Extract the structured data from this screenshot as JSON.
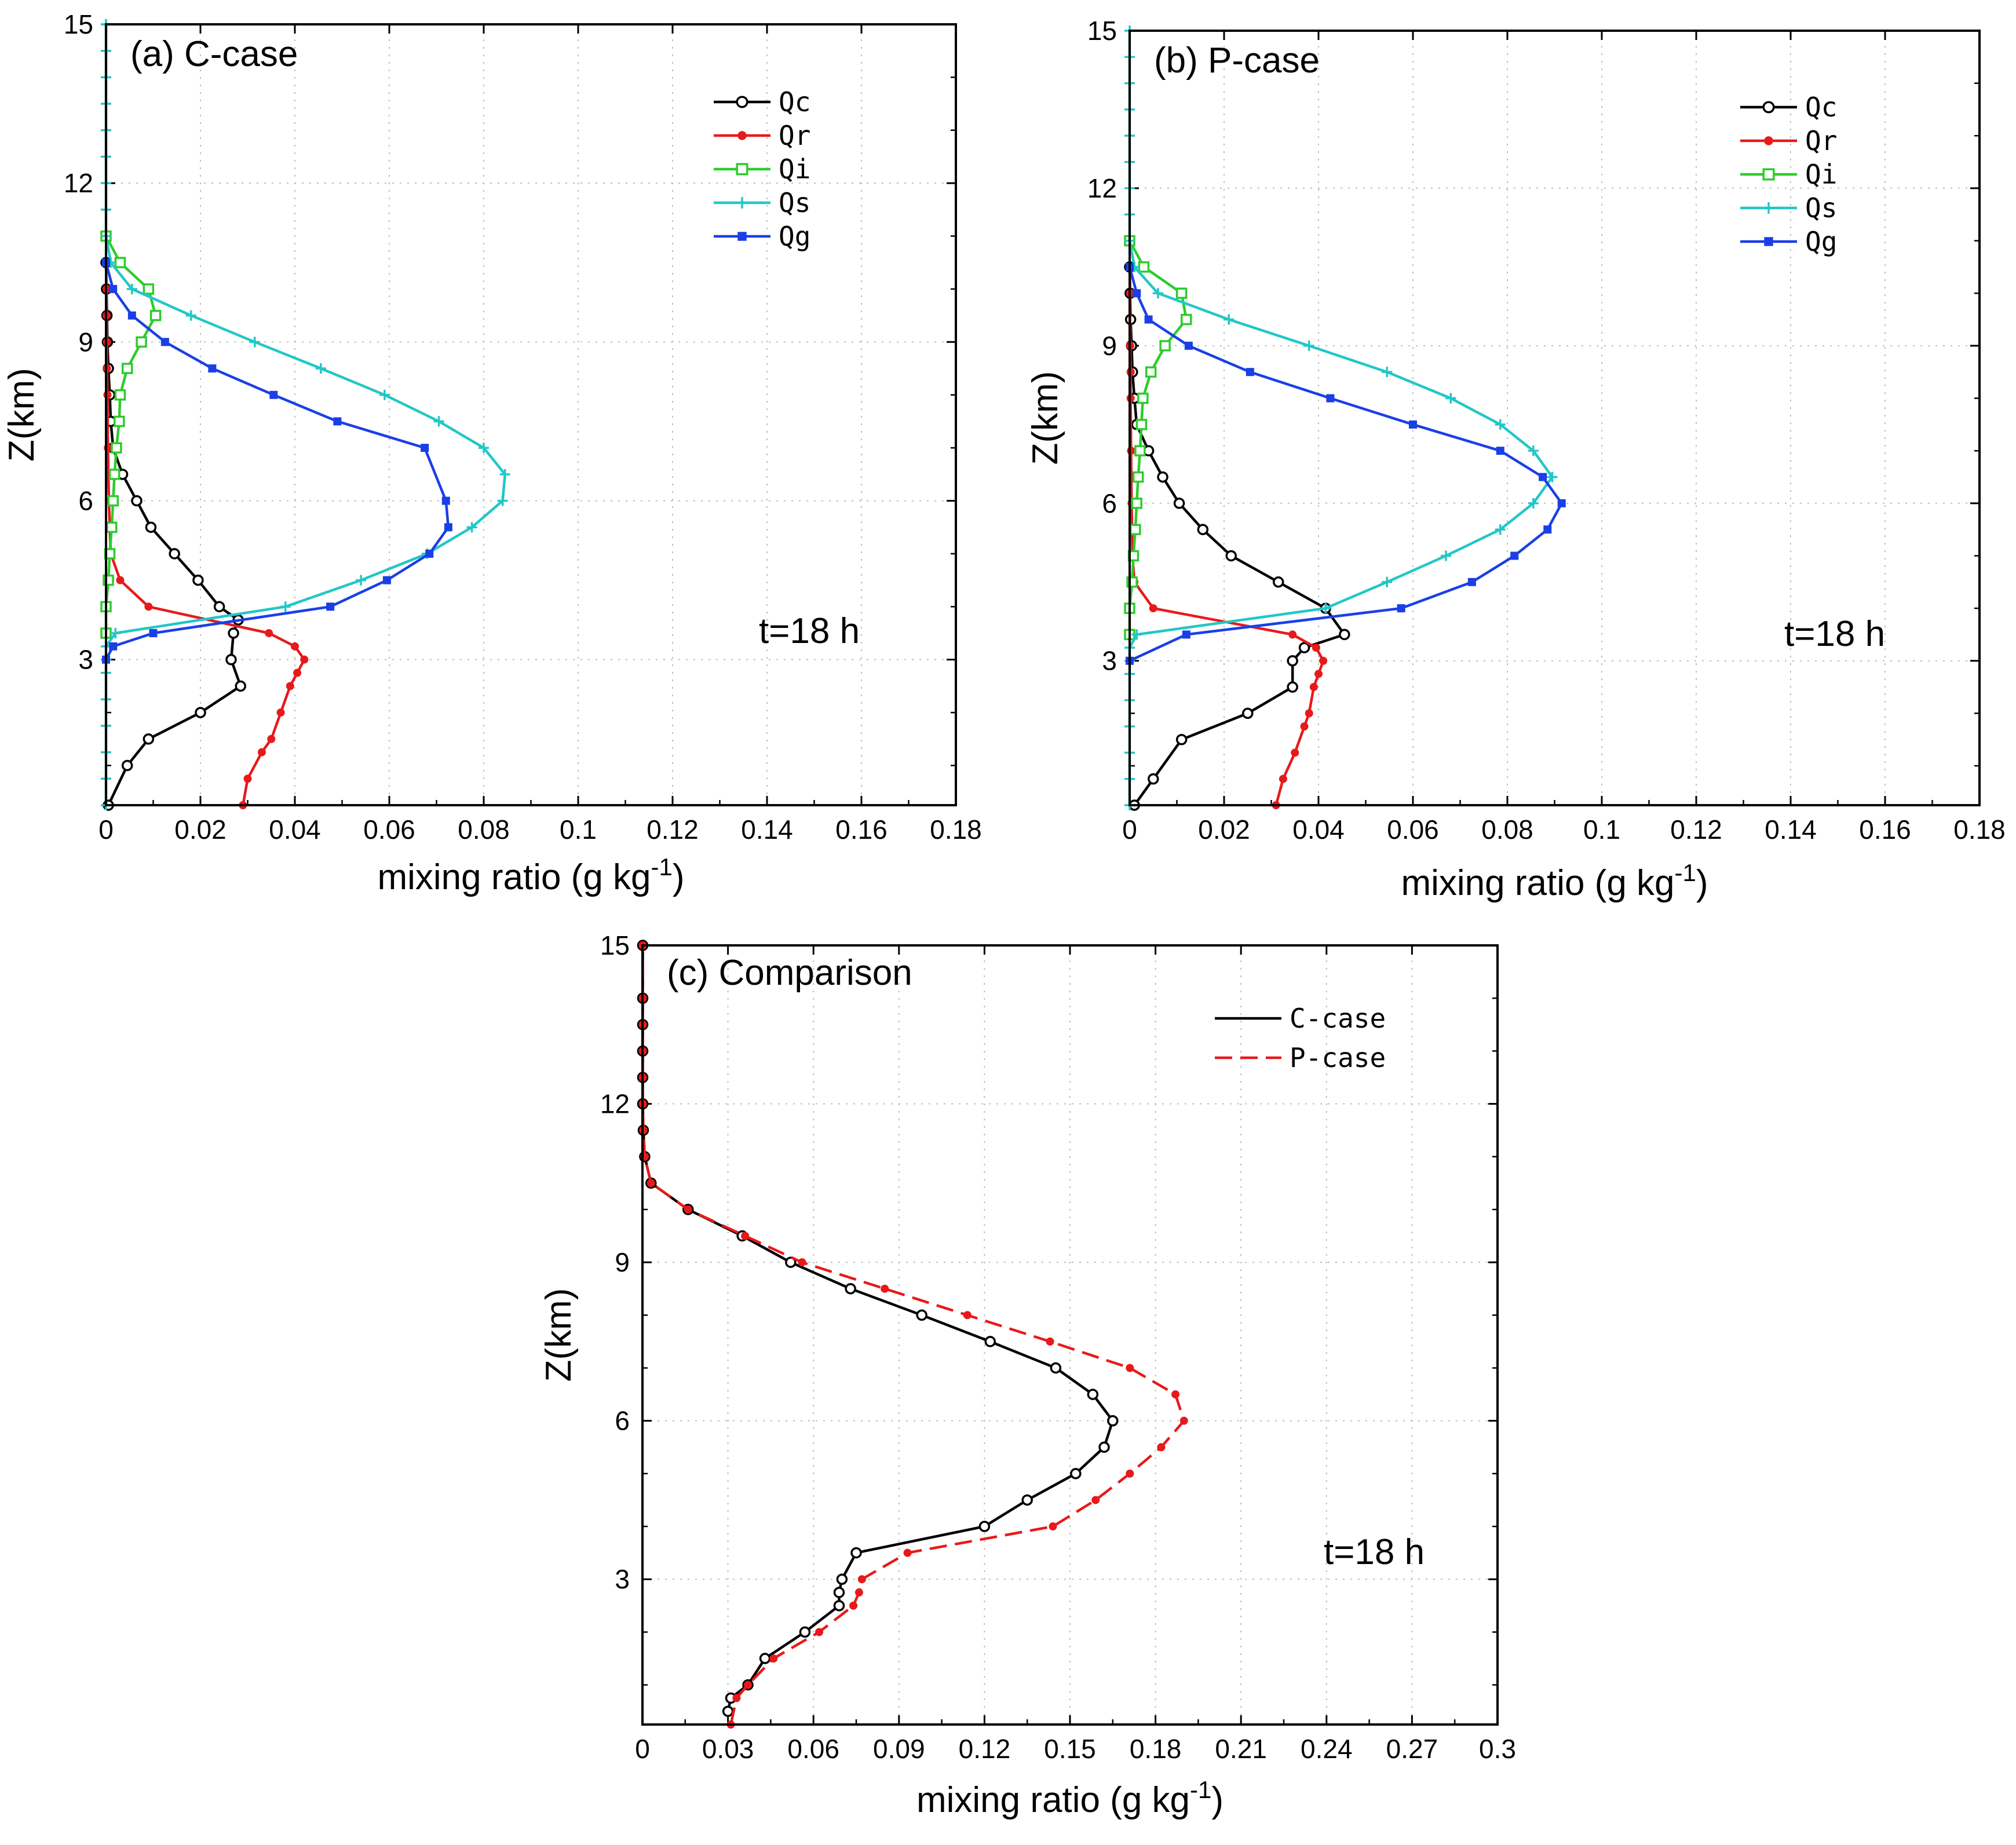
{
  "chart_data": [
    {
      "type": "line",
      "title": "(a) C-case",
      "xlabel": "mixing ratio (g kg",
      "xlabel_sup": "-1",
      "xlabel_close": ")",
      "ylabel": "Z(km)",
      "xlim": [
        0,
        0.18
      ],
      "ylim": [
        0.25,
        15
      ],
      "xticks": [
        "0",
        "0.02",
        "0.04",
        "0.06",
        "0.08",
        "0.1",
        "0.12",
        "0.14",
        "0.16",
        "0.18"
      ],
      "xtick_values": [
        0,
        0.02,
        0.04,
        0.06,
        0.08,
        0.1,
        0.12,
        0.14,
        0.16,
        0.18
      ],
      "yticks": [
        "3",
        "6",
        "9",
        "12",
        "15"
      ],
      "ytick_values": [
        3,
        6,
        9,
        12,
        15
      ],
      "grid": true,
      "legend_position": "top-right",
      "annotation": "t=18 h",
      "series": [
        {
          "name": "Qc",
          "color": "#000000",
          "marker": "circle",
          "dash": false,
          "x": [
            0.0005,
            0.0045,
            0.009,
            0.02,
            0.0285,
            0.0265,
            0.027,
            0.028,
            0.024,
            0.0195,
            0.0145,
            0.0095,
            0.0065,
            0.0035,
            0.0015,
            0.001,
            0.0008,
            0.0005,
            0.0003,
            0.0002,
            0.0001,
            0.0
          ],
          "y": [
            0.25,
            1.0,
            1.5,
            2.0,
            2.5,
            3.0,
            3.5,
            3.75,
            4.0,
            4.5,
            5.0,
            5.5,
            6.0,
            6.5,
            7.0,
            7.5,
            8.0,
            8.5,
            9.0,
            9.5,
            10.0,
            10.5
          ]
        },
        {
          "name": "Qr",
          "color": "#e8191b",
          "marker": "dot",
          "dash": false,
          "x": [
            0.029,
            0.03,
            0.033,
            0.035,
            0.037,
            0.039,
            0.0405,
            0.042,
            0.04,
            0.0345,
            0.009,
            0.003,
            0.001,
            0.0006,
            0.0004,
            0.0003,
            0.0002,
            0.0002,
            0.0001,
            0.0001,
            0.0
          ],
          "y": [
            0.25,
            0.75,
            1.25,
            1.5,
            2.0,
            2.5,
            2.75,
            3.0,
            3.25,
            3.5,
            4.0,
            4.5,
            5.0,
            6.0,
            7.0,
            8.0,
            8.5,
            9.0,
            9.5,
            10.0,
            10.5
          ]
        },
        {
          "name": "Qi",
          "color": "#2dcc2d",
          "marker": "square",
          "dash": false,
          "x": [
            0.0,
            0.0,
            0.0005,
            0.0008,
            0.0012,
            0.0015,
            0.0018,
            0.0022,
            0.0028,
            0.003,
            0.0045,
            0.0075,
            0.0105,
            0.009,
            0.003,
            0.0
          ],
          "y": [
            3.5,
            4.0,
            4.5,
            5.0,
            5.5,
            6.0,
            6.5,
            7.0,
            7.5,
            8.0,
            8.5,
            9.0,
            9.5,
            10.0,
            10.5,
            11.0
          ]
        },
        {
          "name": "Qs",
          "color": "#22c7c7",
          "marker": "plus",
          "dash": false,
          "x": [
            0.0,
            0.0,
            0.0,
            0.0,
            0.0,
            0.0,
            0.0,
            0.0,
            0.002,
            0.038,
            0.054,
            0.068,
            0.0775,
            0.084,
            0.0845,
            0.08,
            0.0705,
            0.059,
            0.0455,
            0.0315,
            0.018,
            0.0055,
            0.001,
            0.0,
            0.0,
            0.0,
            0.0,
            0.0,
            0.0,
            0.0,
            0.0,
            0.0,
            0.0
          ],
          "y": [
            0.25,
            0.75,
            1.25,
            1.75,
            2.25,
            2.75,
            3.0,
            3.25,
            3.5,
            4.0,
            4.5,
            5.0,
            5.5,
            6.0,
            6.5,
            7.0,
            7.5,
            8.0,
            8.5,
            9.0,
            9.5,
            10.0,
            10.5,
            11.0,
            11.5,
            12.0,
            12.5,
            13.0,
            13.5,
            14.0,
            14.5,
            15.0,
            15.0
          ]
        },
        {
          "name": "Qg",
          "color": "#1a3fe6",
          "marker": "filled-square",
          "dash": false,
          "x": [
            0.0,
            0.0015,
            0.01,
            0.0475,
            0.0595,
            0.0685,
            0.0725,
            0.072,
            0.0675,
            0.049,
            0.0355,
            0.0225,
            0.0125,
            0.0055,
            0.0015,
            0.0
          ],
          "y": [
            3.0,
            3.25,
            3.5,
            4.0,
            4.5,
            5.0,
            5.5,
            6.0,
            7.0,
            7.5,
            8.0,
            8.5,
            9.0,
            9.5,
            10.0,
            10.5
          ]
        }
      ]
    },
    {
      "type": "line",
      "title": "(b) P-case",
      "xlabel": "mixing ratio (g kg",
      "xlabel_sup": "-1",
      "xlabel_close": ")",
      "ylabel": "Z(km)",
      "xlim": [
        0,
        0.18
      ],
      "ylim": [
        0.25,
        15
      ],
      "xticks": [
        "0",
        "0.02",
        "0.04",
        "0.06",
        "0.08",
        "0.1",
        "0.12",
        "0.14",
        "0.16",
        "0.18"
      ],
      "xtick_values": [
        0,
        0.02,
        0.04,
        0.06,
        0.08,
        0.1,
        0.12,
        0.14,
        0.16,
        0.18
      ],
      "yticks": [
        "3",
        "6",
        "9",
        "12",
        "15"
      ],
      "ytick_values": [
        3,
        6,
        9,
        12,
        15
      ],
      "grid": true,
      "legend_position": "top-right",
      "annotation": "t=18 h",
      "series": [
        {
          "name": "Qc",
          "color": "#000000",
          "marker": "circle",
          "dash": false,
          "x": [
            0.001,
            0.005,
            0.011,
            0.025,
            0.0345,
            0.0345,
            0.037,
            0.0455,
            0.0415,
            0.0315,
            0.0215,
            0.0155,
            0.0105,
            0.007,
            0.004,
            0.0015,
            0.001,
            0.0006,
            0.0004,
            0.0002,
            0.0001,
            0.0
          ],
          "y": [
            0.25,
            0.75,
            1.5,
            2.0,
            2.5,
            3.0,
            3.25,
            3.5,
            4.0,
            4.5,
            5.0,
            5.5,
            6.0,
            6.5,
            7.0,
            7.5,
            8.0,
            8.5,
            9.0,
            9.5,
            10.0,
            10.5
          ]
        },
        {
          "name": "Qr",
          "color": "#e8191b",
          "marker": "dot",
          "dash": false,
          "x": [
            0.031,
            0.0325,
            0.035,
            0.037,
            0.038,
            0.039,
            0.04,
            0.041,
            0.0395,
            0.0345,
            0.005,
            0.001,
            0.0006,
            0.0004,
            0.0003,
            0.0002,
            0.0002,
            0.0001,
            0.0001,
            0.0
          ],
          "y": [
            0.25,
            0.75,
            1.25,
            1.75,
            2.0,
            2.5,
            2.75,
            3.0,
            3.25,
            3.5,
            4.0,
            4.5,
            5.0,
            6.0,
            7.0,
            8.0,
            8.5,
            9.0,
            10.0,
            10.5
          ]
        },
        {
          "name": "Qi",
          "color": "#2dcc2d",
          "marker": "square",
          "dash": false,
          "x": [
            0.0,
            0.0,
            0.0005,
            0.0008,
            0.0012,
            0.0015,
            0.0018,
            0.0022,
            0.0025,
            0.0028,
            0.0045,
            0.0075,
            0.012,
            0.011,
            0.003,
            0.0
          ],
          "y": [
            3.5,
            4.0,
            4.5,
            5.0,
            5.5,
            6.0,
            6.5,
            7.0,
            7.5,
            8.0,
            8.5,
            9.0,
            9.5,
            10.0,
            10.5,
            11.0
          ]
        },
        {
          "name": "Qs",
          "color": "#22c7c7",
          "marker": "plus",
          "dash": false,
          "x": [
            0.0,
            0.0,
            0.0,
            0.0,
            0.0,
            0.0,
            0.0,
            0.0,
            0.0015,
            0.0415,
            0.0545,
            0.067,
            0.0785,
            0.0855,
            0.0895,
            0.0855,
            0.0785,
            0.068,
            0.0545,
            0.038,
            0.021,
            0.006,
            0.001,
            0.0,
            0.0,
            0.0,
            0.0,
            0.0,
            0.0,
            0.0,
            0.0,
            0.0
          ],
          "y": [
            0.25,
            0.75,
            1.25,
            1.75,
            2.25,
            2.75,
            3.0,
            3.25,
            3.5,
            4.0,
            4.5,
            5.0,
            5.5,
            6.0,
            6.5,
            7.0,
            7.5,
            8.0,
            8.5,
            9.0,
            9.5,
            10.0,
            10.5,
            11.0,
            11.5,
            12.0,
            12.5,
            13.0,
            13.5,
            14.0,
            14.5,
            15.0
          ]
        },
        {
          "name": "Qg",
          "color": "#1a3fe6",
          "marker": "filled-square",
          "dash": false,
          "x": [
            0.0,
            0.012,
            0.0575,
            0.0725,
            0.0815,
            0.0885,
            0.0915,
            0.0875,
            0.0785,
            0.06,
            0.0425,
            0.0255,
            0.0125,
            0.004,
            0.0015,
            0.0
          ],
          "y": [
            3.0,
            3.5,
            4.0,
            4.5,
            5.0,
            5.5,
            6.0,
            6.5,
            7.0,
            7.5,
            8.0,
            8.5,
            9.0,
            9.5,
            10.0,
            10.5
          ]
        }
      ]
    },
    {
      "type": "line",
      "title": "(c) Comparison",
      "xlabel": "mixing ratio (g kg",
      "xlabel_sup": "-1",
      "xlabel_close": ")",
      "ylabel": "Z(km)",
      "xlim": [
        0,
        0.3
      ],
      "ylim": [
        0.25,
        15
      ],
      "xticks": [
        "0",
        "0.03",
        "0.06",
        "0.09",
        "0.12",
        "0.15",
        "0.18",
        "0.21",
        "0.24",
        "0.27",
        "0.3"
      ],
      "xtick_values": [
        0,
        0.03,
        0.06,
        0.09,
        0.12,
        0.15,
        0.18,
        0.21,
        0.24,
        0.27,
        0.3
      ],
      "yticks": [
        "3",
        "6",
        "9",
        "12",
        "15"
      ],
      "ytick_values": [
        3,
        6,
        9,
        12,
        15
      ],
      "grid": true,
      "legend_position": "top-right",
      "annotation": "t=18 h",
      "series": [
        {
          "name": "C-case",
          "color": "#000000",
          "marker": "circle",
          "dash": false,
          "x": [
            0.03,
            0.031,
            0.037,
            0.043,
            0.057,
            0.069,
            0.069,
            0.07,
            0.075,
            0.12,
            0.135,
            0.152,
            0.162,
            0.165,
            0.158,
            0.145,
            0.122,
            0.098,
            0.073,
            0.052,
            0.035,
            0.016,
            0.003,
            0.0008,
            0.0003,
            0.0001,
            0.0001,
            0.0001,
            0.0001,
            0.0001,
            0.0001
          ],
          "y": [
            0.5,
            0.75,
            1.0,
            1.5,
            2.0,
            2.5,
            2.75,
            3.0,
            3.5,
            4.0,
            4.5,
            5.0,
            5.5,
            6.0,
            6.5,
            7.0,
            7.5,
            8.0,
            8.5,
            9.0,
            9.5,
            10.0,
            10.5,
            11.0,
            11.5,
            12.0,
            12.5,
            13.0,
            13.5,
            14.0,
            15.0
          ]
        },
        {
          "name": "P-case",
          "color": "#e8191b",
          "marker": "dot",
          "dash": true,
          "x": [
            0.031,
            0.033,
            0.037,
            0.046,
            0.062,
            0.074,
            0.076,
            0.077,
            0.093,
            0.144,
            0.159,
            0.171,
            0.182,
            0.19,
            0.187,
            0.171,
            0.143,
            0.114,
            0.085,
            0.056,
            0.036,
            0.016,
            0.003,
            0.0008,
            0.0003,
            0.0001,
            0.0001,
            0.0001,
            0.0001,
            0.0001,
            0.0001
          ],
          "y": [
            0.25,
            0.75,
            1.0,
            1.5,
            2.0,
            2.5,
            2.75,
            3.0,
            3.5,
            4.0,
            4.5,
            5.0,
            5.5,
            6.0,
            6.5,
            7.0,
            7.5,
            8.0,
            8.5,
            9.0,
            9.5,
            10.0,
            10.5,
            11.0,
            11.5,
            12.0,
            12.5,
            13.0,
            13.5,
            14.0,
            15.0
          ]
        }
      ]
    }
  ]
}
